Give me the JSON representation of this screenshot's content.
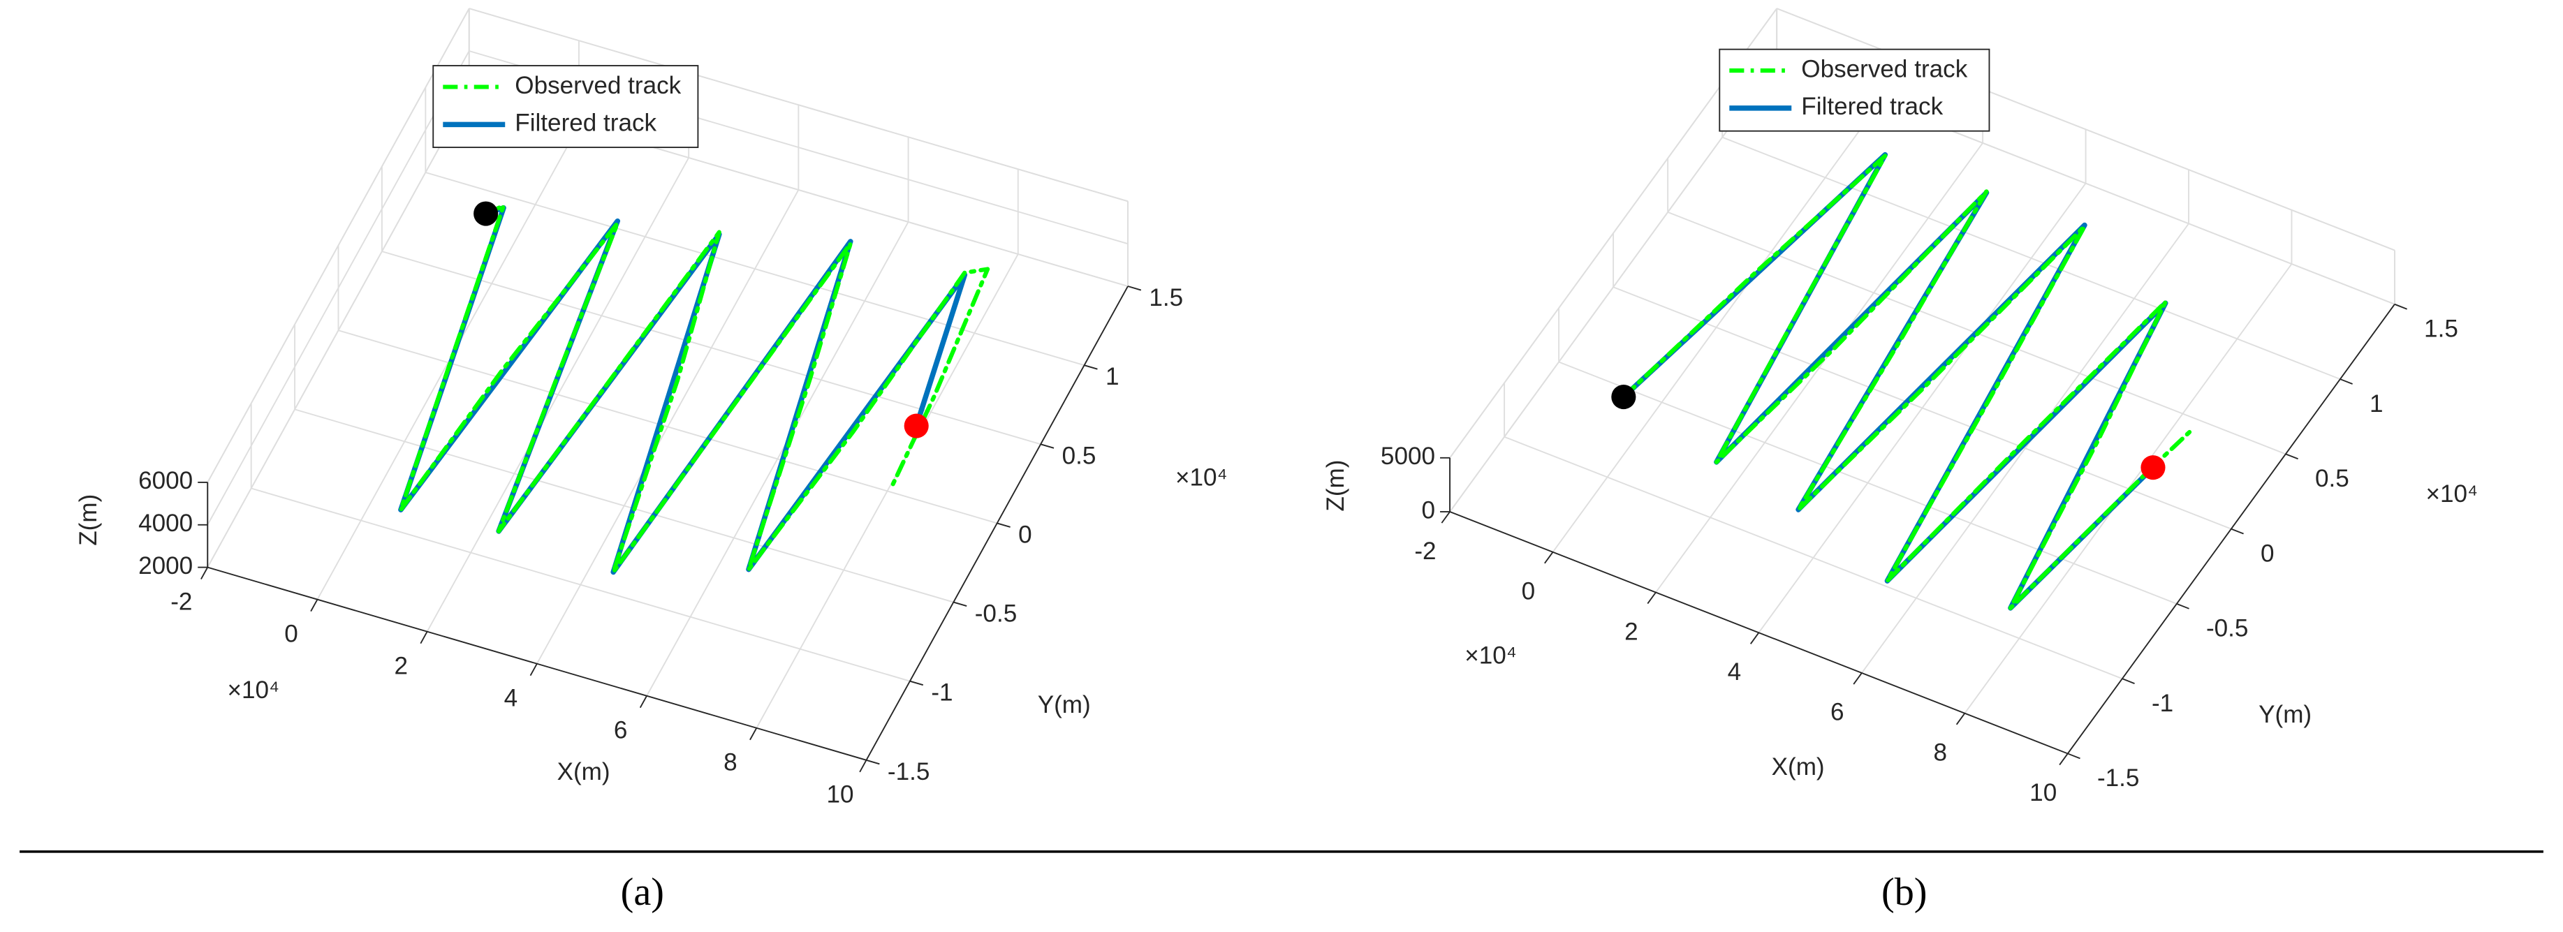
{
  "chart_data": [
    {
      "type": "line3d",
      "subplot_label": "(a)",
      "xlabel": "X(m)",
      "ylabel": "Y(m)",
      "zlabel": "Z(m)",
      "x_exponent_label": "×10⁴",
      "y_exponent_label": "×10⁴",
      "xlim": [
        -2,
        10
      ],
      "ylim": [
        -1.5,
        1.5
      ],
      "zlim": [
        2000,
        6000
      ],
      "xticks": [
        -2,
        0,
        2,
        4,
        6,
        8,
        10
      ],
      "yticks": [
        -1.5,
        -1,
        -0.5,
        0,
        0.5,
        1,
        1.5
      ],
      "zticks": [
        2000,
        4000,
        6000
      ],
      "grid": true,
      "legend": "upper left",
      "start_color": "#000000",
      "end_color": "#ff0000",
      "series": [
        {
          "name": "Observed track",
          "color": "#00ff00",
          "style": "dashdot",
          "x": [
            -0.33,
            -0.1,
            0.4,
            0.9,
            1.3,
            1.8,
            2.2,
            2.62,
            3.0,
            3.51,
            4.1,
            4.77,
            5.2,
            5.63,
            6.2,
            6.87,
            7.3,
            7.71,
            8.0,
            8.3,
            8.4
          ],
          "y": [
            0.64,
            0.7,
            -0.25,
            -1.11,
            -0.2,
            0.81,
            -0.1,
            -1.07,
            -0.15,
            0.9,
            0.05,
            -1.11,
            -0.1,
            1.07,
            0.25,
            -0.88,
            0.05,
            1.07,
            1.15,
            0.35,
            -0.2
          ],
          "z": [
            4000,
            4100,
            3900,
            4000,
            4100,
            3900,
            4100,
            4000,
            3900,
            4100,
            3900,
            4000,
            4100,
            3900,
            4100,
            4000,
            3900,
            4100,
            3900,
            4100,
            4000
          ]
        },
        {
          "name": "Filtered track",
          "color": "#0072bd",
          "style": "solid",
          "x": [
            -0.33,
            -0.1,
            0.9,
            1.8,
            2.62,
            3.51,
            4.77,
            5.63,
            6.87,
            7.71,
            8.26
          ],
          "y": [
            0.64,
            0.7,
            -1.11,
            0.81,
            -1.07,
            0.9,
            -1.11,
            1.07,
            -0.88,
            1.07,
            0.17
          ],
          "z": [
            4000,
            4000,
            4000,
            4000,
            4000,
            4000,
            4000,
            4000,
            4000,
            4000,
            4000
          ]
        }
      ]
    },
    {
      "type": "line3d",
      "subplot_label": "(b)",
      "xlabel": "X(m)",
      "ylabel": "Y(m)",
      "zlabel": "Z(m)",
      "x_exponent_label": "×10⁴",
      "y_exponent_label": "×10⁴",
      "xlim": [
        -2,
        10
      ],
      "ylim": [
        -1.5,
        1.5
      ],
      "zlim": [
        0,
        5000
      ],
      "xticks": [
        -2,
        0,
        2,
        4,
        6,
        8,
        10
      ],
      "yticks": [
        -1.5,
        -1,
        -0.5,
        0,
        0.5,
        1,
        1.5
      ],
      "zticks": [
        0,
        5000
      ],
      "grid": true,
      "legend": "upper left",
      "start_color": "#000000",
      "end_color": "#ff0000",
      "series": [
        {
          "name": "Observed track",
          "color": "#00ff00",
          "style": "dashdot",
          "x": [
            -0.34,
            0.3,
            0.95,
            1.4,
            1.78,
            2.3,
            2.9,
            3.2,
            3.54,
            4.1,
            4.74,
            5.2,
            5.67,
            6.2,
            6.82,
            7.3,
            7.83,
            8.44,
            8.6
          ],
          "y": [
            -0.69,
            0.22,
            1.1,
            0.05,
            -0.84,
            0.0,
            1.11,
            0.2,
            -0.92,
            -0.05,
            1.14,
            0.1,
            -1.11,
            -0.1,
            0.9,
            0.05,
            -1.0,
            0.02,
            0.3
          ],
          "z": [
            2500,
            2600,
            2400,
            2600,
            2500,
            2400,
            2600,
            2400,
            2500,
            2600,
            2400,
            2600,
            2500,
            2400,
            2600,
            2400,
            2500,
            2600,
            2400
          ]
        },
        {
          "name": "Filtered track",
          "color": "#0072bd",
          "style": "solid",
          "x": [
            -0.34,
            0.95,
            1.78,
            2.9,
            3.54,
            4.74,
            5.67,
            6.82,
            7.83,
            8.44
          ],
          "y": [
            -0.69,
            1.1,
            -0.84,
            1.11,
            -0.92,
            1.14,
            -1.11,
            0.9,
            -1.0,
            0.02
          ],
          "z": [
            2500,
            2500,
            2500,
            2500,
            2500,
            2500,
            2500,
            2500,
            2500,
            2500
          ]
        }
      ]
    }
  ]
}
